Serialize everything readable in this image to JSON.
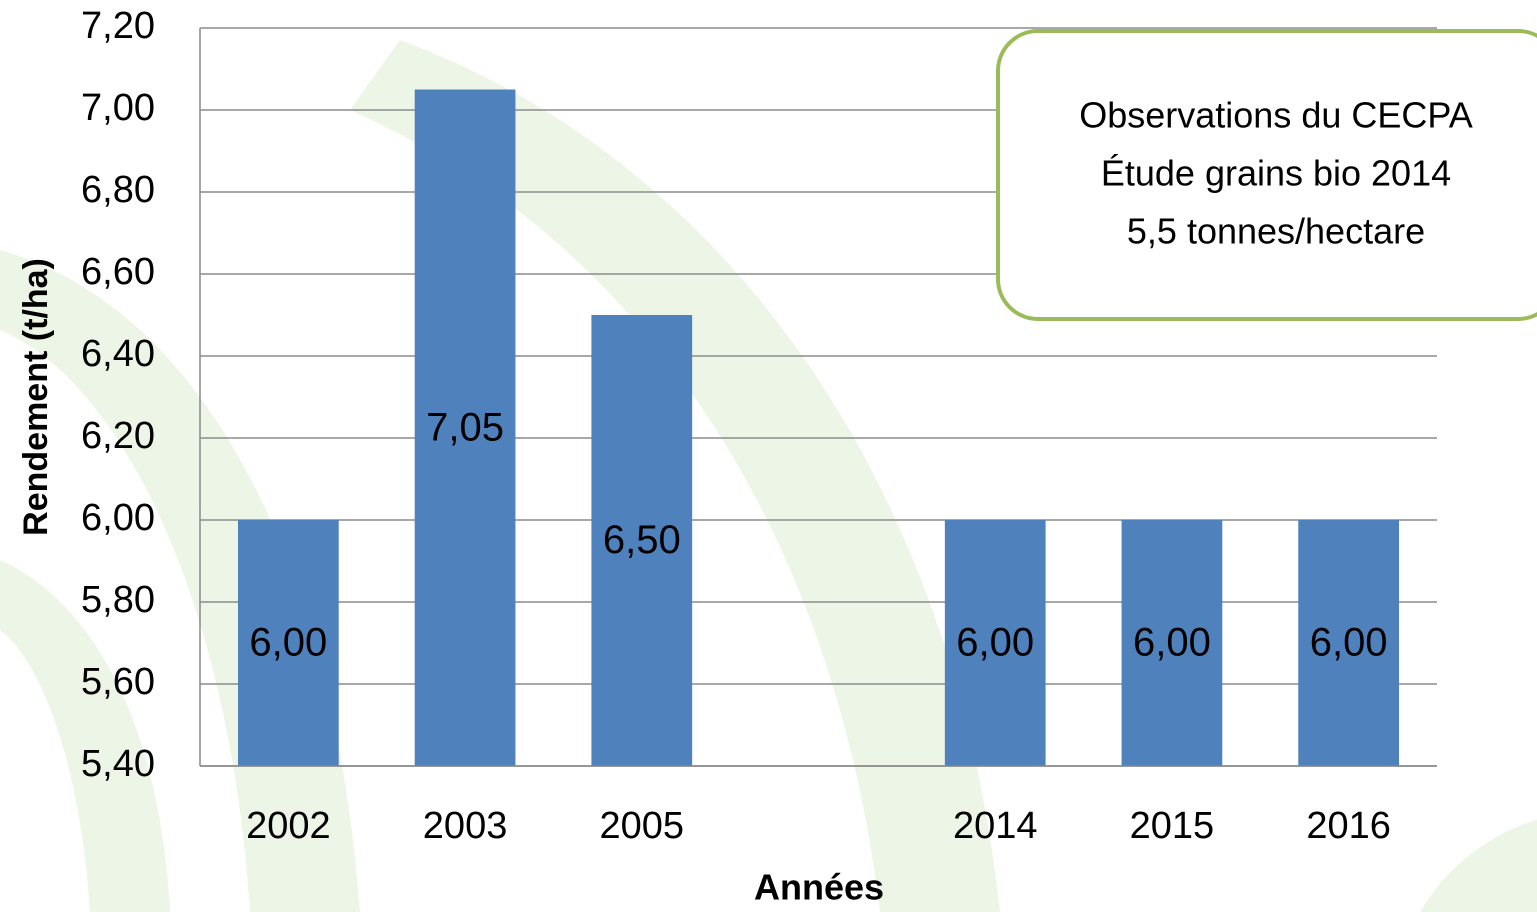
{
  "chart_data": {
    "type": "bar",
    "xlabel": "Années",
    "ylabel": "Rendement (t/ha)",
    "categories": [
      "2002",
      "2003",
      "2005",
      null,
      "2014",
      "2015",
      "2016"
    ],
    "values": [
      6.0,
      7.05,
      6.5,
      null,
      6.0,
      6.0,
      6.0
    ],
    "value_labels": [
      "6,00",
      "7,05",
      "6,50",
      null,
      "6,00",
      "6,00",
      "6,00"
    ],
    "color": "#4f81bd",
    "ylim": [
      5.4,
      7.2
    ],
    "yticks": [
      {
        "value": 5.4,
        "label": "5,40"
      },
      {
        "value": 5.6,
        "label": "5,60"
      },
      {
        "value": 5.8,
        "label": "5,80"
      },
      {
        "value": 6.0,
        "label": "6,00"
      },
      {
        "value": 6.2,
        "label": "6,20"
      },
      {
        "value": 6.4,
        "label": "6,40"
      },
      {
        "value": 6.6,
        "label": "6,60"
      },
      {
        "value": 6.8,
        "label": "6,80"
      },
      {
        "value": 7.0,
        "label": "7,00"
      },
      {
        "value": 7.2,
        "label": "7,20"
      }
    ],
    "grid": true,
    "annotation": [
      "Observations du CECPA",
      "Étude grains bio 2014",
      "5,5 tonnes/hectare"
    ]
  }
}
